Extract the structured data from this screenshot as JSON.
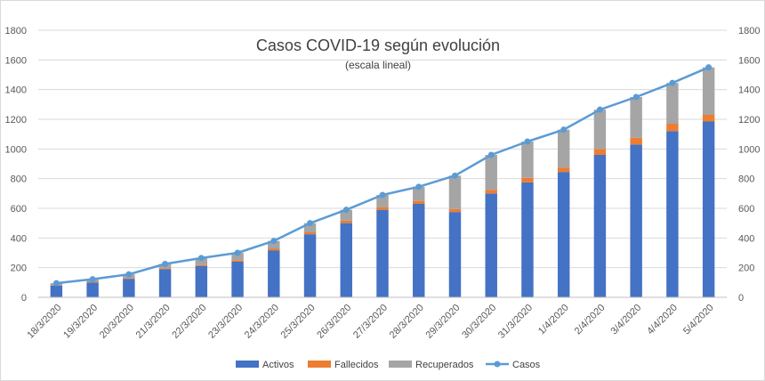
{
  "chart_data": {
    "type": "bar",
    "stacked": true,
    "title": "Casos COVID-19 según evolución",
    "subtitle": "(escala lineal)",
    "xlabel": "",
    "ylabel": "",
    "ylim": [
      0,
      1800
    ],
    "y_ticks": [
      0,
      200,
      400,
      600,
      800,
      1000,
      1200,
      1400,
      1600,
      1800
    ],
    "y_tick_labels": [
      "0",
      "200",
      "400",
      "600",
      "800",
      "1000",
      "1200",
      "1400",
      "1600",
      "1800"
    ],
    "secondary_y_axis": true,
    "grid": true,
    "legend_position": "bottom",
    "categories": [
      "18/3/2020",
      "19/3/2020",
      "20/3/2020",
      "21/3/2020",
      "22/3/2020",
      "23/3/2020",
      "24/3/2020",
      "25/3/2020",
      "26/3/2020",
      "27/3/2020",
      "28/3/2020",
      "29/3/2020",
      "30/3/2020",
      "31/3/2020",
      "1/4/2020",
      "2/4/2020",
      "3/4/2020",
      "4/4/2020",
      "5/4/2020"
    ],
    "series": [
      {
        "name": "Activos",
        "kind": "bar",
        "color": "#4472C4",
        "values": [
          80,
          100,
          125,
          190,
          210,
          240,
          315,
          425,
          500,
          590,
          630,
          575,
          700,
          775,
          845,
          960,
          1030,
          1120,
          1185
        ]
      },
      {
        "name": "Fallecidos",
        "kind": "bar",
        "color": "#ED7D31",
        "values": [
          3,
          5,
          6,
          7,
          8,
          10,
          12,
          13,
          17,
          18,
          20,
          20,
          25,
          30,
          30,
          40,
          45,
          50,
          45
        ]
      },
      {
        "name": "Recuperados",
        "kind": "bar",
        "color": "#A5A5A5",
        "values": [
          12,
          17,
          24,
          28,
          47,
          50,
          53,
          62,
          73,
          82,
          95,
          225,
          235,
          245,
          255,
          265,
          275,
          275,
          320
        ]
      },
      {
        "name": "Casos",
        "kind": "line",
        "color": "#5B9BD5",
        "values": [
          95,
          122,
          155,
          225,
          265,
          300,
          380,
          500,
          590,
          690,
          745,
          820,
          960,
          1050,
          1130,
          1265,
          1350,
          1445,
          1550
        ]
      }
    ]
  }
}
